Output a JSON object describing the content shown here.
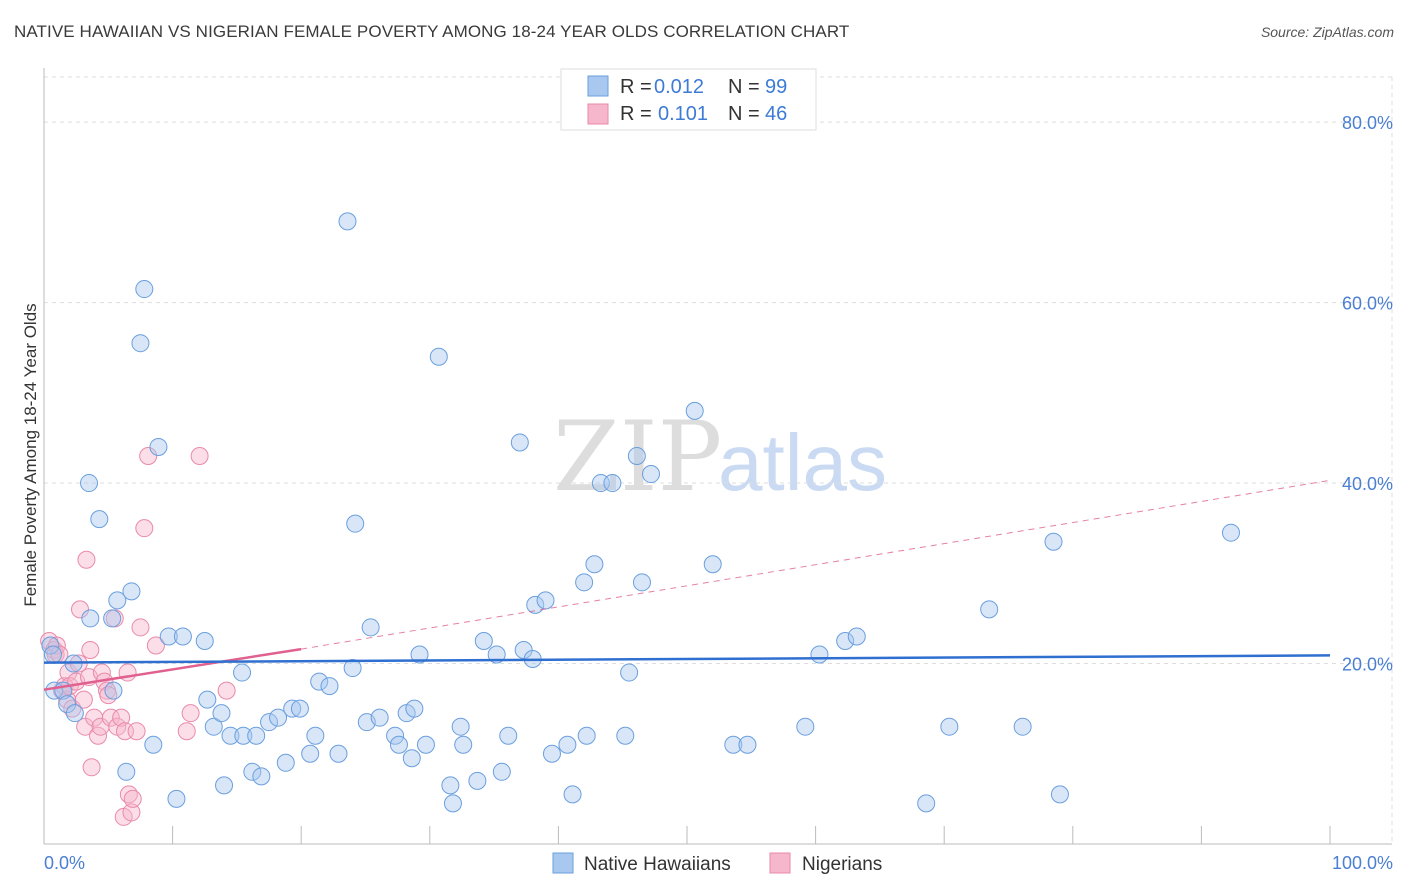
{
  "title": "NATIVE HAWAIIAN VS NIGERIAN FEMALE POVERTY AMONG 18-24 YEAR OLDS CORRELATION CHART",
  "source": "Source: ZipAtlas.com",
  "colors": {
    "blue_fill": "#a9c8f0",
    "blue_stroke": "#6a9fde",
    "blue_line": "#2f6fd0",
    "pink_fill": "#f6b6cb",
    "pink_stroke": "#e98aaa",
    "pink_line": "#e0608f",
    "tick_text": "#4a7fd1"
  },
  "watermark": {
    "zip": "ZIP",
    "atlas": "atlas"
  },
  "chart_data": {
    "type": "scatter",
    "ylabel": "Female Poverty Among 18-24 Year Olds",
    "xlim": [
      0,
      100
    ],
    "ylim": [
      0,
      85
    ],
    "x_tick_labels": [
      "0.0%",
      "100.0%"
    ],
    "y_ticks": [
      20,
      40,
      60,
      80
    ],
    "y_tick_labels": [
      "20.0%",
      "40.0%",
      "60.0%",
      "80.0%"
    ],
    "grid": true,
    "legend": {
      "placement": "top-center",
      "entries": [
        {
          "r_label": "R =",
          "r_value": "0.012",
          "n_label": "N =",
          "n_value": "99"
        },
        {
          "r_label": "R =",
          "r_value": "0.101",
          "n_label": "N =",
          "n_value": "46"
        }
      ]
    },
    "bottom_legend": [
      "Native Hawaiians",
      "Nigerians"
    ],
    "series": [
      {
        "name": "Native Hawaiians",
        "trend": {
          "x": [
            0,
            100
          ],
          "y": [
            20.1,
            20.9
          ]
        },
        "points": [
          [
            0.5,
            22
          ],
          [
            0.7,
            21
          ],
          [
            0.8,
            17
          ],
          [
            1.5,
            17
          ],
          [
            1.8,
            15.5
          ],
          [
            2.3,
            20
          ],
          [
            2.4,
            14.5
          ],
          [
            3.5,
            40
          ],
          [
            3.6,
            25
          ],
          [
            4.3,
            36
          ],
          [
            5.3,
            25
          ],
          [
            5.4,
            17
          ],
          [
            5.7,
            27
          ],
          [
            6.4,
            8
          ],
          [
            6.8,
            28
          ],
          [
            7.5,
            55.5
          ],
          [
            7.8,
            61.5
          ],
          [
            8.5,
            11
          ],
          [
            8.9,
            44
          ],
          [
            9.7,
            23
          ],
          [
            10.3,
            5
          ],
          [
            10.8,
            23
          ],
          [
            12.5,
            22.5
          ],
          [
            12.7,
            16
          ],
          [
            13.2,
            13
          ],
          [
            13.8,
            14.5
          ],
          [
            14,
            6.5
          ],
          [
            14.5,
            12
          ],
          [
            15.4,
            19
          ],
          [
            15.5,
            12
          ],
          [
            16.2,
            8
          ],
          [
            16.5,
            12
          ],
          [
            16.9,
            7.5
          ],
          [
            17.5,
            13.5
          ],
          [
            18.2,
            14
          ],
          [
            18.8,
            9
          ],
          [
            19.3,
            15
          ],
          [
            19.9,
            15
          ],
          [
            20.7,
            10
          ],
          [
            21.1,
            12
          ],
          [
            21.4,
            18
          ],
          [
            22.2,
            17.5
          ],
          [
            22.9,
            10
          ],
          [
            23.6,
            69
          ],
          [
            24,
            19.5
          ],
          [
            24.2,
            35.5
          ],
          [
            25.1,
            13.5
          ],
          [
            25.4,
            24
          ],
          [
            26.1,
            14
          ],
          [
            27.3,
            12
          ],
          [
            27.6,
            11
          ],
          [
            28.2,
            14.5
          ],
          [
            28.6,
            9.5
          ],
          [
            28.8,
            15
          ],
          [
            29.2,
            21
          ],
          [
            29.7,
            11
          ],
          [
            30.7,
            54
          ],
          [
            31.6,
            6.5
          ],
          [
            31.8,
            4.5
          ],
          [
            32.4,
            13
          ],
          [
            32.6,
            11
          ],
          [
            33.7,
            7
          ],
          [
            34.2,
            22.5
          ],
          [
            35.2,
            21
          ],
          [
            35.6,
            8
          ],
          [
            36.1,
            12
          ],
          [
            37,
            44.5
          ],
          [
            37.3,
            21.5
          ],
          [
            38,
            20.5
          ],
          [
            38.2,
            26.5
          ],
          [
            39,
            27
          ],
          [
            39.5,
            10
          ],
          [
            40.7,
            11
          ],
          [
            41.1,
            5.5
          ],
          [
            42,
            29
          ],
          [
            42.2,
            12
          ],
          [
            42.8,
            31
          ],
          [
            43.3,
            40
          ],
          [
            44.2,
            40
          ],
          [
            45.2,
            12
          ],
          [
            45.5,
            19
          ],
          [
            46.1,
            43
          ],
          [
            46.5,
            29
          ],
          [
            47.2,
            41
          ],
          [
            50.6,
            48
          ],
          [
            52,
            31
          ],
          [
            53.6,
            11
          ],
          [
            54.7,
            11
          ],
          [
            59.2,
            13
          ],
          [
            60.3,
            21
          ],
          [
            62.3,
            22.5
          ],
          [
            63.2,
            23
          ],
          [
            68.6,
            4.5
          ],
          [
            70.4,
            13
          ],
          [
            73.5,
            26
          ],
          [
            76.1,
            13
          ],
          [
            78.5,
            33.5
          ],
          [
            79,
            5.5
          ],
          [
            92.3,
            34.5
          ]
        ]
      },
      {
        "name": "Nigerians",
        "trend": {
          "x": [
            0,
            20
          ],
          "y": [
            17.1,
            21.6
          ]
        },
        "trend_extension": {
          "x": [
            20,
            100
          ],
          "y": [
            21.6,
            40.3
          ]
        },
        "points": [
          [
            0.4,
            22.5
          ],
          [
            0.8,
            21.5
          ],
          [
            0.9,
            21
          ],
          [
            1,
            22
          ],
          [
            1.2,
            21
          ],
          [
            1.4,
            17
          ],
          [
            1.6,
            17.5
          ],
          [
            1.8,
            16
          ],
          [
            1.9,
            19
          ],
          [
            2,
            17.5
          ],
          [
            2.2,
            15
          ],
          [
            2.5,
            18
          ],
          [
            2.7,
            20
          ],
          [
            2.8,
            26
          ],
          [
            3.1,
            16
          ],
          [
            3.2,
            13
          ],
          [
            3.3,
            31.5
          ],
          [
            3.5,
            18.5
          ],
          [
            3.6,
            21.5
          ],
          [
            3.7,
            8.5
          ],
          [
            3.9,
            14
          ],
          [
            4.2,
            12
          ],
          [
            4.4,
            13
          ],
          [
            4.5,
            19
          ],
          [
            4.7,
            18
          ],
          [
            4.9,
            17
          ],
          [
            5,
            16.5
          ],
          [
            5.2,
            14
          ],
          [
            5.5,
            25
          ],
          [
            5.7,
            13
          ],
          [
            6,
            14
          ],
          [
            6.2,
            3
          ],
          [
            6.3,
            12.5
          ],
          [
            6.5,
            19
          ],
          [
            6.6,
            5.5
          ],
          [
            6.8,
            3.5
          ],
          [
            6.9,
            5
          ],
          [
            7.2,
            12.5
          ],
          [
            7.5,
            24
          ],
          [
            7.8,
            35
          ],
          [
            8.1,
            43
          ],
          [
            8.7,
            22
          ],
          [
            11.1,
            12.5
          ],
          [
            11.4,
            14.5
          ],
          [
            12.1,
            43
          ],
          [
            14.2,
            17
          ]
        ]
      }
    ]
  }
}
